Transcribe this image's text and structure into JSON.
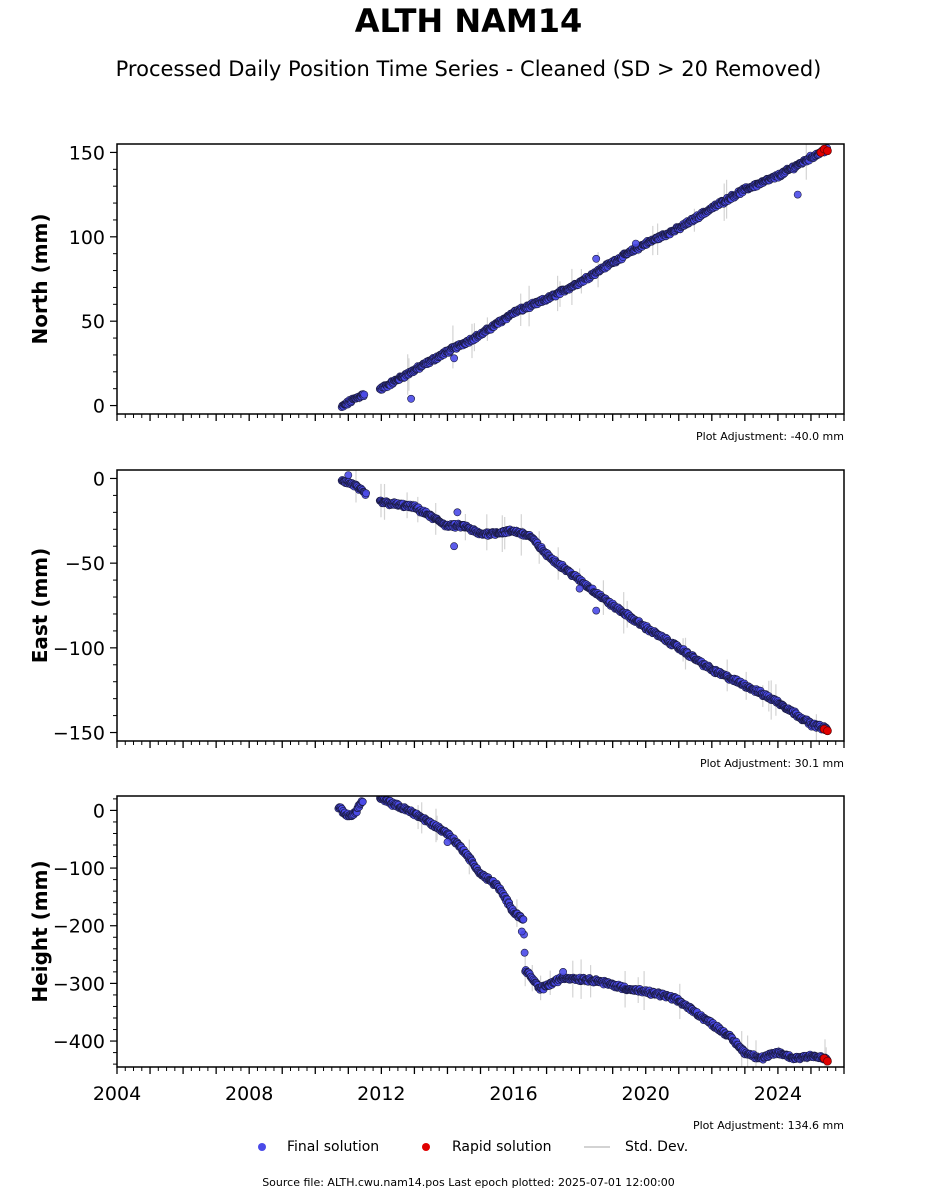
{
  "header": {
    "title": "ALTH NAM14",
    "subtitle": "Processed Daily Position Time Series - Cleaned (SD > 20 Removed)"
  },
  "colors": {
    "final": "#4a4ae8",
    "final_edge": "#1a1a40",
    "rapid": "#e00000",
    "stddev": "#d3d3d3"
  },
  "legend": {
    "final_label": "Final solution",
    "rapid_label": "Rapid solution",
    "stddev_label": "Std. Dev."
  },
  "footer": {
    "source": "Source file: ALTH.cwu.nam14.pos  Last epoch plotted: 2025-07-01 12:00:00"
  },
  "chart_data": [
    {
      "type": "scatter",
      "ylabel": "North (mm)",
      "adjustment": "Plot Adjustment: -40.0 mm",
      "xlim": [
        2004,
        2026
      ],
      "ylim": [
        -5,
        155
      ],
      "yticks": [
        0,
        50,
        100,
        150
      ],
      "ytick_labels": [
        "0",
        "50",
        "100",
        "150"
      ],
      "anchors": [
        [
          2010.8,
          -1
        ],
        [
          2011.1,
          3
        ],
        [
          2011.4,
          6
        ],
        [
          2012.0,
          10
        ],
        [
          2013.0,
          21
        ],
        [
          2014.0,
          32
        ],
        [
          2015.0,
          42
        ],
        [
          2016.0,
          55
        ],
        [
          2017.0,
          63
        ],
        [
          2018.0,
          73
        ],
        [
          2019.0,
          85
        ],
        [
          2020.0,
          96
        ],
        [
          2021.0,
          105
        ],
        [
          2022.0,
          117
        ],
        [
          2023.0,
          128
        ],
        [
          2024.0,
          136
        ],
        [
          2025.0,
          147
        ],
        [
          2025.5,
          152
        ]
      ],
      "gaps": [
        [
          2011.5,
          2011.95
        ]
      ],
      "outliers": [
        [
          2012.9,
          4
        ],
        [
          2014.2,
          28
        ],
        [
          2018.5,
          87
        ],
        [
          2019.7,
          96
        ],
        [
          2024.6,
          125
        ]
      ],
      "rapid": [
        [
          2025.3,
          150
        ],
        [
          2025.4,
          152
        ],
        [
          2025.5,
          151
        ]
      ]
    },
    {
      "type": "scatter",
      "ylabel": "East (mm)",
      "adjustment": "Plot Adjustment: 30.1 mm",
      "xlim": [
        2004,
        2026
      ],
      "ylim": [
        -155,
        5
      ],
      "yticks": [
        0,
        -50,
        -100,
        -150
      ],
      "ytick_labels": [
        "0",
        "−50",
        "−100",
        "−150"
      ],
      "anchors": [
        [
          2010.8,
          -1
        ],
        [
          2011.2,
          -4
        ],
        [
          2011.5,
          -9
        ],
        [
          2012.0,
          -14
        ],
        [
          2013.0,
          -17
        ],
        [
          2014.0,
          -28
        ],
        [
          2014.5,
          -28
        ],
        [
          2015.0,
          -33
        ],
        [
          2016.0,
          -31
        ],
        [
          2016.5,
          -34
        ],
        [
          2017.0,
          -45
        ],
        [
          2018.0,
          -60
        ],
        [
          2019.0,
          -75
        ],
        [
          2020.0,
          -88
        ],
        [
          2021.0,
          -100
        ],
        [
          2022.0,
          -113
        ],
        [
          2023.0,
          -122
        ],
        [
          2024.0,
          -132
        ],
        [
          2025.0,
          -145
        ],
        [
          2025.5,
          -148
        ]
      ],
      "gaps": [
        [
          2011.55,
          2011.95
        ]
      ],
      "outliers": [
        [
          2011.0,
          2
        ],
        [
          2014.2,
          -40
        ],
        [
          2014.3,
          -20
        ],
        [
          2018.0,
          -65
        ],
        [
          2018.5,
          -78
        ]
      ],
      "rapid": [
        [
          2025.4,
          -148
        ],
        [
          2025.5,
          -149
        ]
      ]
    },
    {
      "type": "scatter",
      "ylabel": "Height (mm)",
      "adjustment": "Plot Adjustment: 134.6 mm",
      "xlim": [
        2004,
        2026
      ],
      "ylim": [
        -445,
        25
      ],
      "yticks": [
        0,
        -100,
        -200,
        -300,
        -400
      ],
      "ytick_labels": [
        "0",
        "−100",
        "−200",
        "−300",
        "−400"
      ],
      "anchors": [
        [
          2010.7,
          5
        ],
        [
          2011.0,
          -10
        ],
        [
          2011.2,
          -5
        ],
        [
          2011.4,
          15
        ],
        [
          2012.0,
          20
        ],
        [
          2013.0,
          -5
        ],
        [
          2014.0,
          -40
        ],
        [
          2014.5,
          -70
        ],
        [
          2015.0,
          -110
        ],
        [
          2015.5,
          -130
        ],
        [
          2016.0,
          -175
        ],
        [
          2016.3,
          -190
        ],
        [
          2016.35,
          -275
        ],
        [
          2016.8,
          -310
        ],
        [
          2017.5,
          -290
        ],
        [
          2018.5,
          -295
        ],
        [
          2019.5,
          -310
        ],
        [
          2020.5,
          -320
        ],
        [
          2021.0,
          -330
        ],
        [
          2021.5,
          -350
        ],
        [
          2022.0,
          -370
        ],
        [
          2022.5,
          -390
        ],
        [
          2023.0,
          -420
        ],
        [
          2023.5,
          -430
        ],
        [
          2024.0,
          -420
        ],
        [
          2024.5,
          -430
        ],
        [
          2025.0,
          -425
        ],
        [
          2025.5,
          -432
        ]
      ],
      "gaps": [
        [
          2011.45,
          2011.95
        ]
      ],
      "outliers": [
        [
          2016.25,
          -210
        ],
        [
          2014.0,
          -55
        ],
        [
          2017.5,
          -280
        ]
      ],
      "rapid": [
        [
          2025.4,
          -430
        ],
        [
          2025.5,
          -435
        ]
      ]
    }
  ],
  "xaxis": {
    "ticks": [
      2004,
      2008,
      2012,
      2016,
      2020,
      2024
    ],
    "tick_labels": [
      "2004",
      "2008",
      "2012",
      "2016",
      "2020",
      "2024"
    ]
  }
}
